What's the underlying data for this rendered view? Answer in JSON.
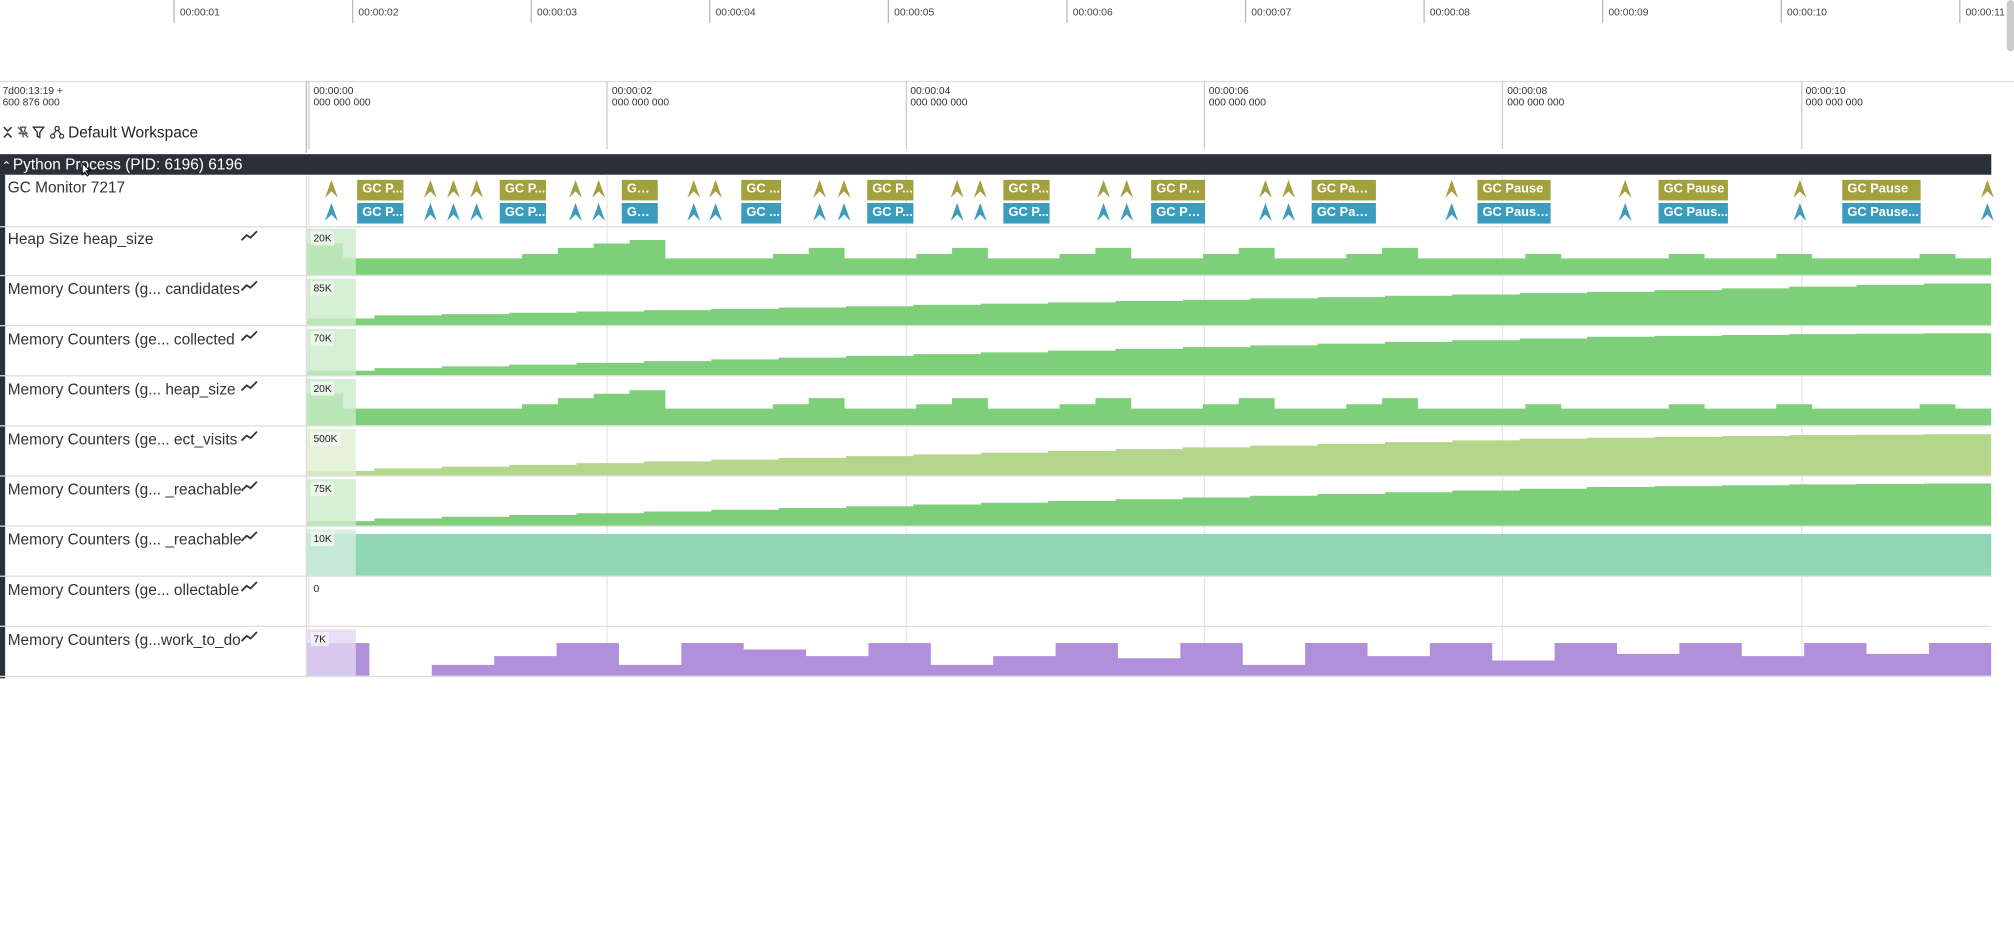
{
  "overview": {
    "ticks": [
      "00:00:01",
      "00:00:02",
      "00:00:03",
      "00:00:04",
      "00:00:05",
      "00:00:06",
      "00:00:07",
      "00:00:08",
      "00:00:09",
      "00:00:10",
      "00:00:11"
    ]
  },
  "timeline": {
    "offset_line1": "7d00:13:19 +",
    "offset_line2": "600 876 000",
    "marks": [
      "00:00:00\n000 000 000",
      "00:00:02\n000 000 000",
      "00:00:04\n000 000 000",
      "00:00:06\n000 000 000",
      "00:00:08\n000 000 000",
      "00:00:10\n000 000 000"
    ]
  },
  "toolbar": {
    "collapse_icon": "collapse-all-icon",
    "unpin_icon": "unpin-icon",
    "filter_icon": "filter-icon",
    "workspace_icon": "workspace-icon",
    "workspace_label": "Default Workspace"
  },
  "process": {
    "title": "Python Process (PID: 6196) 6196",
    "expanded": true
  },
  "gc_track": {
    "label": "GC Monitor 7217",
    "slices": [
      {
        "x": 278,
        "w": 36,
        "row1": "GC P...",
        "row2": "GC P..."
      },
      {
        "x": 389,
        "w": 36,
        "row1": "GC P...",
        "row2": "GC P..."
      },
      {
        "x": 484,
        "w": 28,
        "row1": "GC ...",
        "row2": "GC ..."
      },
      {
        "x": 577,
        "w": 31,
        "row1": "GC ...",
        "row2": "GC ..."
      },
      {
        "x": 675,
        "w": 36,
        "row1": "GC P...",
        "row2": "GC P..."
      },
      {
        "x": 781,
        "w": 36,
        "row1": "GC P...",
        "row2": "GC P..."
      },
      {
        "x": 896,
        "w": 42,
        "row1": "GC Pa...",
        "row2": "GC Pa..."
      },
      {
        "x": 1021,
        "w": 50,
        "row1": "GC Pause",
        "row2": "GC Paus..."
      },
      {
        "x": 1150,
        "w": 57,
        "row1": "GC Pause",
        "row2": "GC Pause..."
      },
      {
        "x": 1291,
        "w": 54,
        "row1": "GC Pause",
        "row2": "GC Paus..."
      },
      {
        "x": 1434,
        "w": 61,
        "row1": "GC Pause",
        "row2": "GC Pause..."
      }
    ],
    "arrows": [
      258,
      335,
      353,
      371,
      448,
      466,
      540,
      557,
      638,
      657,
      745,
      763,
      859,
      877,
      985,
      1003,
      1130,
      1265,
      1401,
      1547
    ],
    "colors": {
      "row1": "#a3a03e",
      "row2": "#3c9cbe"
    }
  },
  "counter_tracks": [
    {
      "label": "Heap Size heap_size",
      "max": "20K",
      "color": "#7dcf7a",
      "light": "#c9ebc8",
      "values": [
        0.72,
        0.38,
        0.38,
        0.38,
        0.38,
        0.38,
        0.48,
        0.62,
        0.72,
        0.8,
        0.38,
        0.38,
        0.38,
        0.48,
        0.62,
        0.38,
        0.38,
        0.48,
        0.62,
        0.38,
        0.38,
        0.48,
        0.62,
        0.38,
        0.38,
        0.48,
        0.62,
        0.38,
        0.38,
        0.48,
        0.62,
        0.38,
        0.38,
        0.38,
        0.48,
        0.38,
        0.38,
        0.38,
        0.48,
        0.38,
        0.38,
        0.48,
        0.38,
        0.38,
        0.38,
        0.48,
        0.38
      ]
    },
    {
      "label": "Memory Counters (g... candidates",
      "max": "85K",
      "color": "#7dcf7a",
      "light": "#c9ebc8",
      "values": [
        0.15,
        0.22,
        0.25,
        0.28,
        0.31,
        0.34,
        0.37,
        0.4,
        0.43,
        0.46,
        0.49,
        0.52,
        0.55,
        0.58,
        0.61,
        0.64,
        0.67,
        0.7,
        0.73,
        0.76,
        0.8,
        0.84,
        0.88,
        0.92,
        0.95
      ]
    },
    {
      "label": "Memory Counters (ge...  collected",
      "max": "70K",
      "color": "#7dcf7a",
      "light": "#c9ebc8",
      "values": [
        0.1,
        0.16,
        0.2,
        0.24,
        0.28,
        0.32,
        0.36,
        0.4,
        0.44,
        0.48,
        0.52,
        0.56,
        0.6,
        0.64,
        0.68,
        0.72,
        0.76,
        0.8,
        0.84,
        0.88,
        0.9,
        0.92,
        0.94,
        0.95,
        0.96
      ]
    },
    {
      "label": "Memory Counters (g...  heap_size",
      "max": "20K",
      "color": "#7dcf7a",
      "light": "#c9ebc8",
      "values": [
        0.72,
        0.38,
        0.38,
        0.38,
        0.38,
        0.38,
        0.48,
        0.62,
        0.72,
        0.8,
        0.38,
        0.38,
        0.38,
        0.48,
        0.62,
        0.38,
        0.38,
        0.48,
        0.62,
        0.38,
        0.38,
        0.48,
        0.62,
        0.38,
        0.38,
        0.48,
        0.62,
        0.38,
        0.38,
        0.48,
        0.62,
        0.38,
        0.38,
        0.38,
        0.48,
        0.38,
        0.38,
        0.38,
        0.48,
        0.38,
        0.38,
        0.48,
        0.38,
        0.38,
        0.38,
        0.48,
        0.38
      ]
    },
    {
      "label": "Memory Counters (ge... ect_visits",
      "max": "500K",
      "color": "#b3d68a",
      "light": "#e0efcf",
      "values": [
        0.1,
        0.16,
        0.2,
        0.24,
        0.28,
        0.32,
        0.36,
        0.4,
        0.44,
        0.48,
        0.52,
        0.56,
        0.6,
        0.64,
        0.68,
        0.72,
        0.76,
        0.8,
        0.84,
        0.86,
        0.88,
        0.9,
        0.92,
        0.93,
        0.94
      ]
    },
    {
      "label": "Memory Counters (g...  _reachable",
      "max": "75K",
      "color": "#7dcf7a",
      "light": "#c9ebc8",
      "values": [
        0.1,
        0.16,
        0.2,
        0.24,
        0.28,
        0.32,
        0.36,
        0.4,
        0.44,
        0.48,
        0.52,
        0.56,
        0.6,
        0.64,
        0.68,
        0.72,
        0.76,
        0.8,
        0.84,
        0.88,
        0.9,
        0.92,
        0.94,
        0.95,
        0.96
      ]
    },
    {
      "label": "Memory Counters (g...  _reachable",
      "max": "10K",
      "color": "#8fd6b4",
      "light": "#d3eee0",
      "values": [
        0.95,
        0.95,
        0.95,
        0.95,
        0.95,
        0.95,
        0.95,
        0.95,
        0.95,
        0.95
      ]
    },
    {
      "label": "Memory Counters (ge... ollectable",
      "max": "0",
      "color": "#ffffff",
      "light": "#ffffff",
      "values": []
    },
    {
      "label": "Memory Counters (g...work_to_do",
      "max": "7K",
      "color": "#b08fdb",
      "light": "#e2d6f2",
      "values": [
        0.75,
        0.0,
        0.25,
        0.45,
        0.75,
        0.25,
        0.75,
        0.6,
        0.45,
        0.75,
        0.25,
        0.45,
        0.75,
        0.4,
        0.75,
        0.25,
        0.75,
        0.45,
        0.75,
        0.35,
        0.75,
        0.5,
        0.75,
        0.45,
        0.75,
        0.5,
        0.75
      ]
    }
  ]
}
